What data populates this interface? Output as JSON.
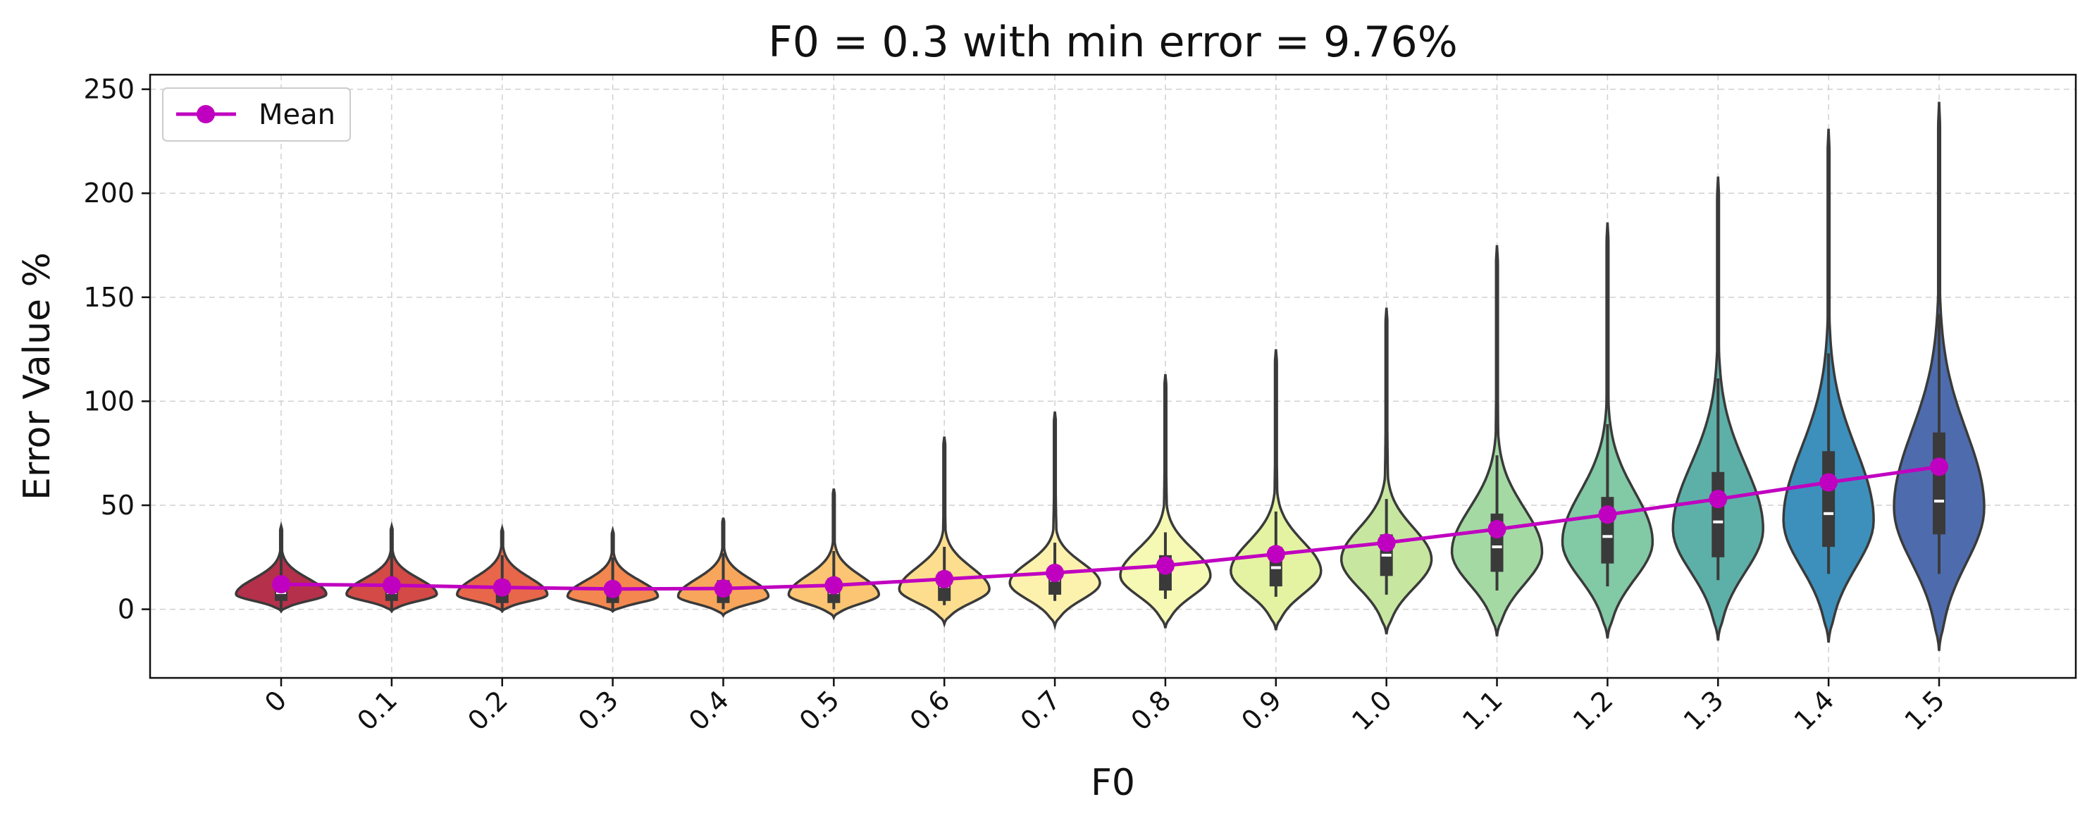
{
  "chart_data": {
    "type": "violin",
    "title": "F0 = 0.3 with min error = 9.76%",
    "xlabel": "F0",
    "ylabel": "Error Value %",
    "categories": [
      "0",
      "0.1",
      "0.2",
      "0.3",
      "0.4",
      "0.5",
      "0.6",
      "0.7",
      "0.8",
      "0.9",
      "1.0",
      "1.1",
      "1.2",
      "1.3",
      "1.4",
      "1.5"
    ],
    "ylim": [
      -33,
      257
    ],
    "yticks": [
      0,
      50,
      100,
      150,
      200,
      250
    ],
    "grid": true,
    "legend": {
      "position": "top-left",
      "entries": [
        "Mean"
      ]
    },
    "colors": [
      "#b5304b",
      "#d44a46",
      "#e8674a",
      "#f3874f",
      "#f7a65c",
      "#fbc574",
      "#fcde8e",
      "#fcf2ae",
      "#f5f9b3",
      "#e4f3a2",
      "#c7e7a0",
      "#a4d9a4",
      "#82c9a5",
      "#5db0a8",
      "#3d90bb",
      "#4e6cad"
    ],
    "mean_color": "#c000c0",
    "series": [
      {
        "name": "Mean",
        "values": [
          12,
          11.5,
          10.5,
          9.76,
          10,
          11.5,
          14.5,
          17.5,
          21,
          26.5,
          32,
          38.5,
          45.5,
          53,
          61,
          68.5
        ]
      }
    ],
    "violins": [
      {
        "min": -1,
        "max": 40,
        "q1": 4,
        "median": 8,
        "q3": 14,
        "whisker_low": 0,
        "whisker_high": 28
      },
      {
        "min": -1,
        "max": 40,
        "q1": 4,
        "median": 8,
        "q3": 14,
        "whisker_low": 0,
        "whisker_high": 27
      },
      {
        "min": -1,
        "max": 39,
        "q1": 3,
        "median": 8,
        "q3": 14,
        "whisker_low": 0,
        "whisker_high": 26
      },
      {
        "min": -1,
        "max": 38,
        "q1": 3,
        "median": 7,
        "q3": 13,
        "whisker_low": 0,
        "whisker_high": 25
      },
      {
        "min": -3,
        "max": 44,
        "q1": 3,
        "median": 7,
        "q3": 14,
        "whisker_low": 0,
        "whisker_high": 27
      },
      {
        "min": -4,
        "max": 58,
        "q1": 3,
        "median": 8,
        "q3": 15,
        "whisker_low": 0,
        "whisker_high": 28
      },
      {
        "min": -7,
        "max": 83,
        "q1": 4,
        "median": 11,
        "q3": 18,
        "whisker_low": 2,
        "whisker_high": 30
      },
      {
        "min": -8,
        "max": 95,
        "q1": 7,
        "median": 14,
        "q3": 20,
        "whisker_low": 4,
        "whisker_high": 32
      },
      {
        "min": -9,
        "max": 113,
        "q1": 9,
        "median": 18,
        "q3": 26,
        "whisker_low": 5,
        "whisker_high": 37
      },
      {
        "min": -10,
        "max": 125,
        "q1": 11,
        "median": 20,
        "q3": 30,
        "whisker_low": 6,
        "whisker_high": 47
      },
      {
        "min": -12,
        "max": 145,
        "q1": 16,
        "median": 26,
        "q3": 36,
        "whisker_low": 7,
        "whisker_high": 53
      },
      {
        "min": -13,
        "max": 175,
        "q1": 18,
        "median": 30,
        "q3": 46,
        "whisker_low": 9,
        "whisker_high": 74
      },
      {
        "min": -14,
        "max": 186,
        "q1": 22,
        "median": 35,
        "q3": 54,
        "whisker_low": 11,
        "whisker_high": 89
      },
      {
        "min": -15,
        "max": 208,
        "q1": 25,
        "median": 42,
        "q3": 66,
        "whisker_low": 14,
        "whisker_high": 111
      },
      {
        "min": -16,
        "max": 231,
        "q1": 30,
        "median": 46,
        "q3": 76,
        "whisker_low": 17,
        "whisker_high": 123
      },
      {
        "min": -20,
        "max": 244,
        "q1": 36,
        "median": 52,
        "q3": 85,
        "whisker_low": 17,
        "whisker_high": 142
      }
    ]
  }
}
